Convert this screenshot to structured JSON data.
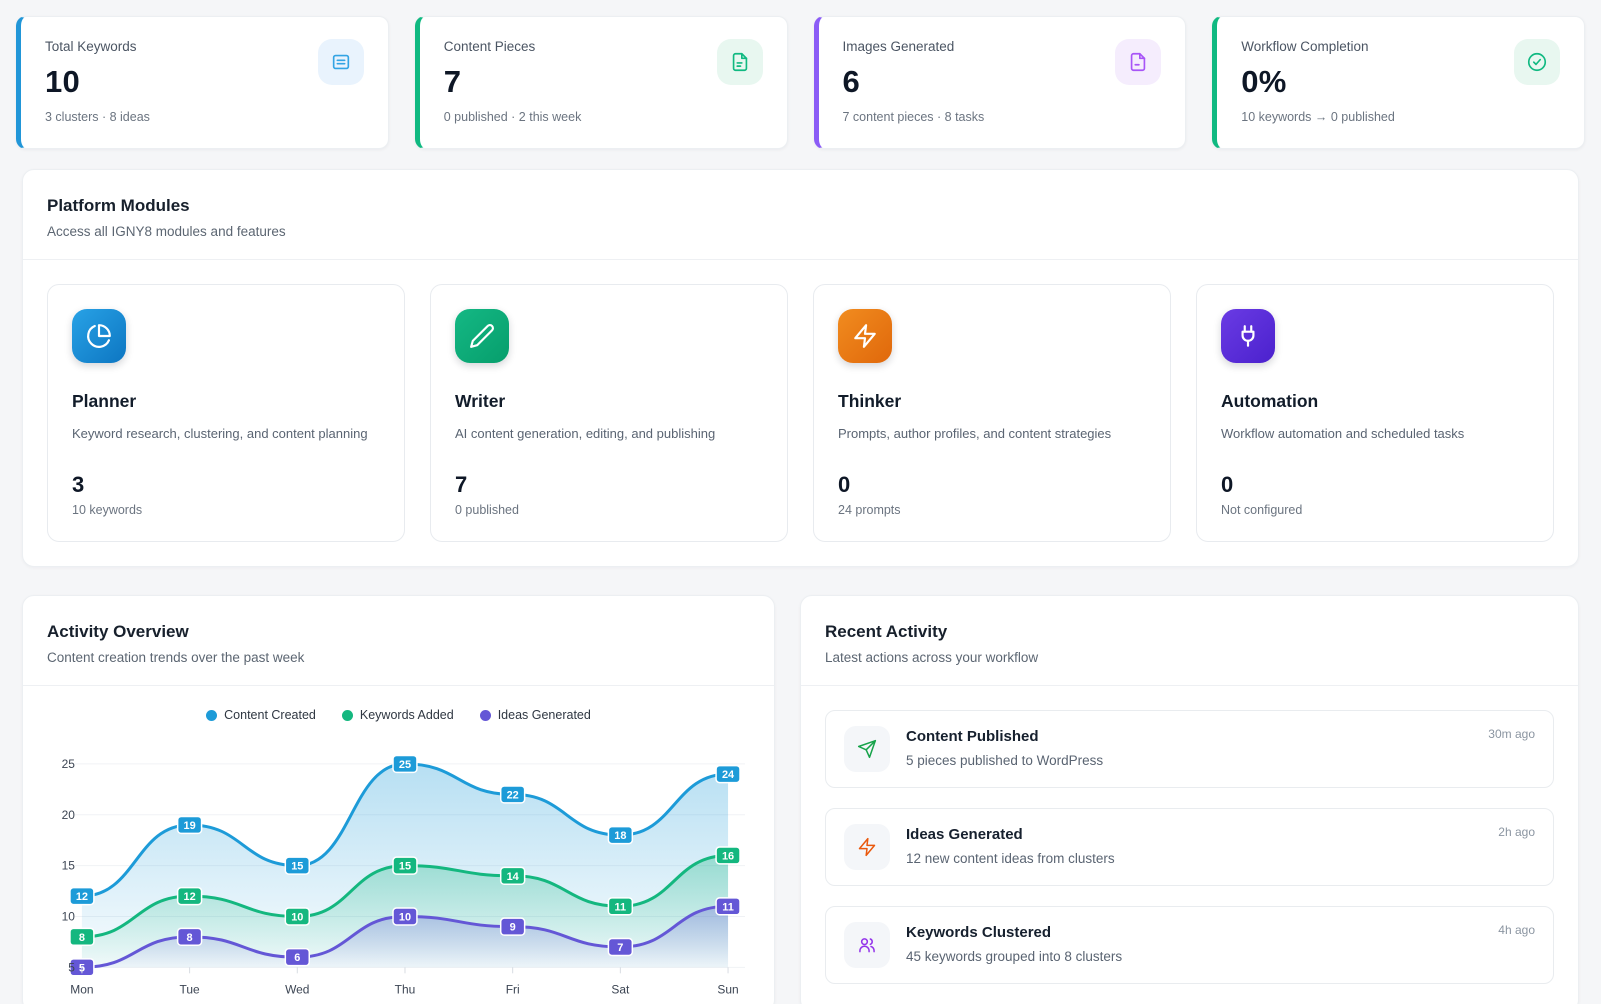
{
  "stat_cards": [
    {
      "label": "Total Keywords",
      "value": "10",
      "subtext": "3 clusters · 8 ideas",
      "accent": "#2196d8",
      "icon": "list-icon",
      "icon_color": "#33a4e4",
      "icon_bg": "#e9f3fd"
    },
    {
      "label": "Content Pieces",
      "value": "7",
      "subtext": "0 published · 2 this week",
      "accent": "#10b981",
      "icon": "file-text-icon",
      "icon_color": "#10b981",
      "icon_bg": "#e8f7f0"
    },
    {
      "label": "Images Generated",
      "value": "6",
      "subtext": "7 content pieces · 8 tasks",
      "accent": "#8b5cf6",
      "icon": "image-file-icon",
      "icon_color": "#a855f7",
      "icon_bg": "#f5edfd"
    },
    {
      "label": "Workflow Completion",
      "value": "0%",
      "subtext": "10 keywords → 0 published",
      "accent": "#10b981",
      "icon": "check-circle-icon",
      "icon_color": "#10b981",
      "icon_bg": "#e8f7f0"
    }
  ],
  "modules_section": {
    "title": "Platform Modules",
    "subtitle": "Access all IGNY8 modules and features",
    "modules": [
      {
        "name": "Planner",
        "description": "Keyword research, clustering, and content planning",
        "value": "3",
        "stat_label": "10 keywords",
        "icon": "pie-chart-icon",
        "gradient": {
          "from": "#28a2e6",
          "to": "#0d76c2"
        }
      },
      {
        "name": "Writer",
        "description": "AI content generation, editing, and publishing",
        "value": "7",
        "stat_label": "0 published",
        "icon": "pencil-icon",
        "gradient": {
          "from": "#14b884",
          "to": "#079e6c"
        }
      },
      {
        "name": "Thinker",
        "description": "Prompts, author profiles, and content strategies",
        "value": "0",
        "stat_label": "24 prompts",
        "icon": "zap-icon",
        "gradient": {
          "from": "#f18c1f",
          "to": "#e0680b"
        }
      },
      {
        "name": "Automation",
        "description": "Workflow automation and scheduled tasks",
        "value": "0",
        "stat_label": "Not configured",
        "icon": "plug-icon",
        "gradient": {
          "from": "#6a3be4",
          "to": "#4b21cd"
        }
      }
    ]
  },
  "activity_overview": {
    "title": "Activity Overview",
    "subtitle": "Content creation trends over the past week"
  },
  "chart_data": {
    "type": "line",
    "x": [
      "Mon",
      "Tue",
      "Wed",
      "Thu",
      "Fri",
      "Sat",
      "Sun"
    ],
    "series": [
      {
        "name": "Content Created",
        "color": "#1d9bd8",
        "values": [
          12,
          19,
          15,
          25,
          22,
          18,
          24
        ]
      },
      {
        "name": "Keywords Added",
        "color": "#14b77f",
        "values": [
          8,
          12,
          10,
          15,
          14,
          11,
          16
        ]
      },
      {
        "name": "Ideas Generated",
        "color": "#6457d6",
        "values": [
          5,
          8,
          6,
          10,
          9,
          7,
          11
        ]
      }
    ],
    "y_ticks": [
      5,
      10,
      15,
      20,
      25
    ],
    "ylim": [
      5,
      25
    ],
    "grid": true,
    "legend_position": "top",
    "area_fill": true,
    "point_labels": true
  },
  "recent_activity": {
    "title": "Recent Activity",
    "subtitle": "Latest actions across your workflow",
    "items": [
      {
        "title": "Content Published",
        "description": "5 pieces published to WordPress",
        "time": "30m ago",
        "icon": "send-icon",
        "icon_color": "#16a34a"
      },
      {
        "title": "Ideas Generated",
        "description": "12 new content ideas from clusters",
        "time": "2h ago",
        "icon": "zap-icon",
        "icon_color": "#ea580c"
      },
      {
        "title": "Keywords Clustered",
        "description": "45 keywords grouped into 8 clusters",
        "time": "4h ago",
        "icon": "users-icon",
        "icon_color": "#9333ea"
      }
    ]
  }
}
